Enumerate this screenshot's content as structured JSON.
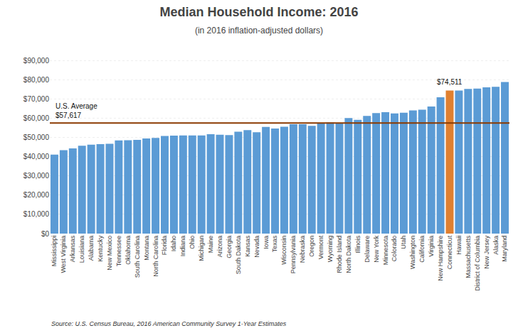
{
  "chart_data": {
    "type": "bar",
    "title": "Median Household Income: 2016",
    "subtitle": "(in 2016 inflation-adjusted dollars)",
    "source": "Source: U.S. Census Bureau, 2016 American Community Survey 1-Year Estimates",
    "categories": [
      "Mississippi",
      "West Virginia",
      "Arkansas",
      "Louisiana",
      "Alabama",
      "Kentucky",
      "New Mexico",
      "Tennessee",
      "Oklahoma",
      "South Carolina",
      "Montana",
      "North Carolina",
      "Florida",
      "Idaho",
      "Indiana",
      "Ohio",
      "Michigan",
      "Maine",
      "Arizona",
      "Georgia",
      "South Dakota",
      "Kansas",
      "Nevada",
      "Iowa",
      "Texas",
      "Wisconsin",
      "Pennsylvania",
      "Nebraska",
      "Oregon",
      "Vermont",
      "Wyoming",
      "Rhode Island",
      "North Dakota",
      "Illinois",
      "Delaware",
      "New York",
      "Minnesota",
      "Colorado",
      "Utah",
      "Washington",
      "California",
      "Virginia",
      "New Hampshire",
      "Connecticut",
      "Hawaii",
      "Massachusetts",
      "District of Columbia",
      "New Jersey",
      "Alaska",
      "Maryland"
    ],
    "values": [
      41099,
      43469,
      44334,
      45727,
      46257,
      46535,
      46744,
      48547,
      48568,
      48781,
      49509,
      49773,
      50860,
      50985,
      51094,
      51075,
      51084,
      51710,
      51492,
      51244,
      53017,
      53906,
      52800,
      55570,
      54727,
      55638,
      56951,
      56927,
      56119,
      57513,
      57829,
      57425,
      60184,
      59196,
      61255,
      62765,
      63217,
      62520,
      62912,
      64129,
      64500,
      66149,
      70936,
      74511,
      74511,
      75297,
      75506,
      76126,
      76440,
      78945
    ],
    "colors": [
      "#5B9BD5",
      "#5B9BD5",
      "#5B9BD5",
      "#5B9BD5",
      "#5B9BD5",
      "#5B9BD5",
      "#5B9BD5",
      "#5B9BD5",
      "#5B9BD5",
      "#5B9BD5",
      "#5B9BD5",
      "#5B9BD5",
      "#5B9BD5",
      "#5B9BD5",
      "#5B9BD5",
      "#5B9BD5",
      "#5B9BD5",
      "#5B9BD5",
      "#5B9BD5",
      "#5B9BD5",
      "#5B9BD5",
      "#5B9BD5",
      "#5B9BD5",
      "#5B9BD5",
      "#5B9BD5",
      "#5B9BD5",
      "#5B9BD5",
      "#5B9BD5",
      "#5B9BD5",
      "#5B9BD5",
      "#5B9BD5",
      "#5B9BD5",
      "#5B9BD5",
      "#5B9BD5",
      "#5B9BD5",
      "#5B9BD5",
      "#5B9BD5",
      "#5B9BD5",
      "#5B9BD5",
      "#5B9BD5",
      "#5B9BD5",
      "#5B9BD5",
      "#5B9BD5",
      "#E08030",
      "#5B9BD5",
      "#5B9BD5",
      "#5B9BD5",
      "#5B9BD5",
      "#5B9BD5",
      "#5B9BD5"
    ],
    "reference_line": {
      "value": 57617,
      "label": "U.S. Average\n$57,617",
      "color": "#8B3A00"
    },
    "annotations": [
      {
        "category": "Connecticut",
        "value": 74511,
        "text": "$74,511"
      }
    ],
    "ylim": [
      0,
      95000
    ],
    "yticks": [
      {
        "value": 0,
        "label": "$0"
      },
      {
        "value": 10000,
        "label": "$10,000"
      },
      {
        "value": 20000,
        "label": "$20,000"
      },
      {
        "value": 30000,
        "label": "$30,000"
      },
      {
        "value": 40000,
        "label": "$40,000"
      },
      {
        "value": 50000,
        "label": "$50,000"
      },
      {
        "value": 60000,
        "label": "$60,000"
      },
      {
        "value": 70000,
        "label": "$70,000"
      },
      {
        "value": 80000,
        "label": "$80,000"
      },
      {
        "value": 90000,
        "label": "$90,000"
      }
    ],
    "grid": true
  }
}
